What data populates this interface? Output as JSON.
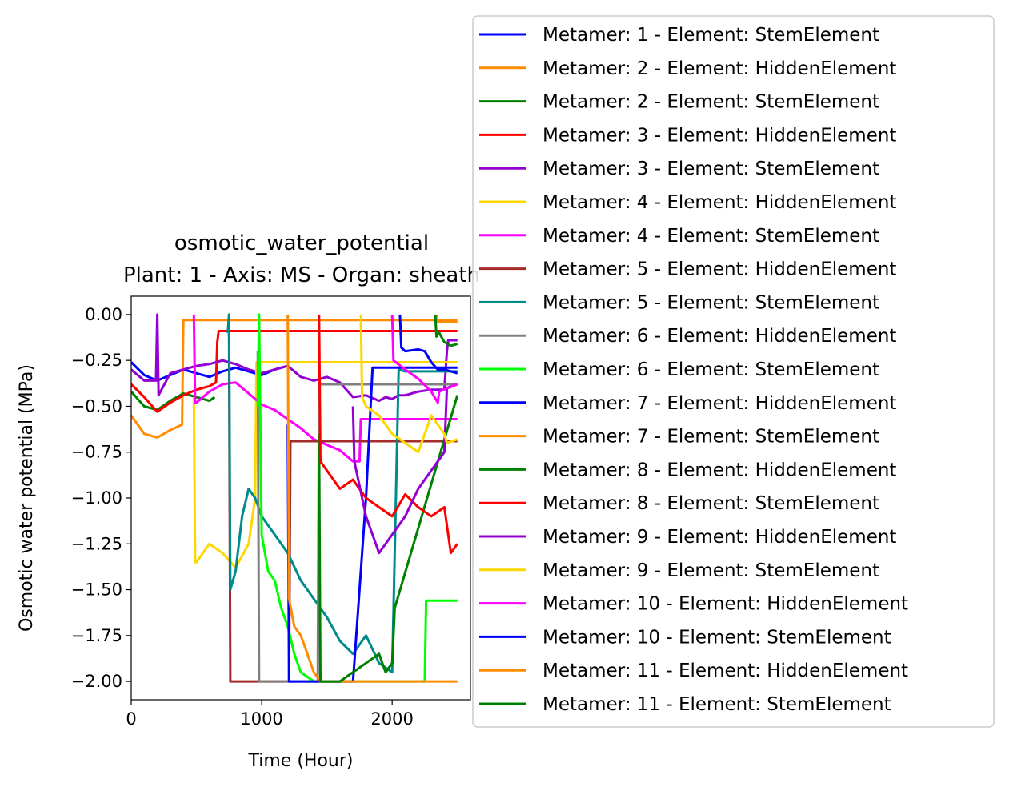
{
  "chart_data": {
    "type": "line",
    "title": "osmotic_water_potential",
    "subtitle": "Plant: 1 - Axis: MS - Organ: sheath",
    "xlabel": "Time (Hour)",
    "ylabel": "Osmotic water potential (MPa)",
    "xlim": [
      0,
      2600
    ],
    "ylim": [
      -2.1,
      0.1
    ],
    "xticks": [
      0,
      1000,
      2000
    ],
    "xtick_labels": [
      "0",
      "1000",
      "2000"
    ],
    "yticks": [
      0.0,
      -0.25,
      -0.5,
      -0.75,
      -1.0,
      -1.25,
      -1.5,
      -1.75,
      -2.0
    ],
    "ytick_labels": [
      "0.00",
      "−0.25",
      "−0.50",
      "−0.75",
      "−1.00",
      "−1.25",
      "−1.50",
      "−1.75",
      "−2.00"
    ],
    "grid": false,
    "legend_position": "upper-right, outside the axes",
    "series": [
      {
        "name": "Metamer: 1 - Element: StemElement",
        "color": "#0000ff",
        "x": [
          0,
          100,
          200,
          300,
          400,
          500,
          600,
          700,
          800,
          900,
          1000,
          1100,
          1200,
          1210
        ],
        "y": [
          -0.26,
          -0.33,
          -0.36,
          -0.33,
          -0.3,
          -0.32,
          -0.34,
          -0.31,
          -0.29,
          -0.31,
          -0.33,
          -0.3,
          -0.28,
          -0.29
        ]
      },
      {
        "name": "Metamer: 2 - Element: HiddenElement",
        "color": "#ff8c00",
        "x": [
          0,
          100,
          200,
          300,
          390,
          400,
          2500
        ],
        "y": [
          -0.55,
          -0.65,
          -0.67,
          -0.63,
          -0.6,
          -0.03,
          -0.03
        ]
      },
      {
        "name": "Metamer: 2 - Element: StemElement",
        "color": "#008000",
        "x": [
          0,
          100,
          200,
          300,
          400,
          500,
          600,
          640
        ],
        "y": [
          -0.42,
          -0.5,
          -0.52,
          -0.47,
          -0.43,
          -0.45,
          -0.47,
          -0.45
        ]
      },
      {
        "name": "Metamer: 3 - Element: HiddenElement",
        "color": "#ff0000",
        "x": [
          0,
          100,
          200,
          300,
          400,
          500,
          600,
          650,
          660,
          670,
          2500
        ],
        "y": [
          -0.38,
          -0.45,
          -0.53,
          -0.48,
          -0.44,
          -0.41,
          -0.39,
          -0.37,
          -0.15,
          -0.09,
          -0.09
        ]
      },
      {
        "name": "Metamer: 3 - Element: StemElement",
        "color": "#9400d3",
        "x": [
          0,
          100,
          190,
          200,
          210,
          300,
          400,
          500,
          600,
          700,
          800,
          900,
          1000,
          1100,
          1200,
          1300,
          1400,
          1500,
          1600,
          1700,
          1800,
          1900,
          1950,
          2000,
          2050,
          2100,
          2200,
          2300,
          2350,
          2400,
          2420,
          2430,
          2500
        ],
        "y": [
          -0.3,
          -0.36,
          -0.36,
          0.0,
          -0.44,
          -0.32,
          -0.3,
          -0.28,
          -0.27,
          -0.25,
          -0.27,
          -0.3,
          -0.32,
          -0.3,
          -0.28,
          -0.34,
          -0.36,
          -0.34,
          -0.37,
          -0.45,
          -0.44,
          -0.47,
          -0.45,
          -0.46,
          -0.44,
          -0.44,
          -0.42,
          -0.41,
          -0.41,
          -0.41,
          -0.2,
          -0.14,
          -0.14
        ]
      },
      {
        "name": "Metamer: 4 - Element: HiddenElement",
        "color": "#ffd700",
        "x": [
          480,
          490,
          500,
          600,
          700,
          800,
          900,
          950,
          960,
          2500
        ],
        "y": [
          -0.45,
          -1.35,
          -1.35,
          -1.25,
          -1.3,
          -1.38,
          -1.25,
          -1.0,
          -0.26,
          -0.26
        ]
      },
      {
        "name": "Metamer: 4 - Element: StemElement",
        "color": "#ff00ff",
        "x": [
          480,
          490,
          500,
          600,
          700,
          800,
          900,
          1000,
          1100,
          1200,
          1300,
          1400,
          1500,
          1600,
          1700,
          1750,
          1760,
          2500
        ],
        "y": [
          0.0,
          -0.48,
          -0.48,
          -0.42,
          -0.38,
          -0.37,
          -0.43,
          -0.49,
          -0.52,
          -0.57,
          -0.62,
          -0.68,
          -0.71,
          -0.74,
          -0.8,
          -0.8,
          -0.57,
          -0.57
        ]
      },
      {
        "name": "Metamer: 5 - Element: HiddenElement",
        "color": "#a52a2a",
        "x": [
          750,
          760,
          1210,
          1220,
          2500
        ],
        "y": [
          -0.07,
          -2.0,
          -2.0,
          -0.69,
          -0.69
        ]
      },
      {
        "name": "Metamer: 5 - Element: StemElement",
        "color": "#008b8b",
        "x": [
          740,
          750,
          760,
          800,
          850,
          900,
          950,
          1000,
          1100,
          1200,
          1300,
          1400,
          1500,
          1600,
          1700,
          1800,
          1900,
          2000,
          2050,
          2100,
          2200,
          2500
        ],
        "y": [
          -0.1,
          0.0,
          -1.5,
          -1.4,
          -1.1,
          -0.95,
          -1.0,
          -1.1,
          -1.2,
          -1.3,
          -1.45,
          -1.55,
          -1.65,
          -1.78,
          -1.85,
          -1.75,
          -1.9,
          -1.95,
          -0.3,
          -0.31,
          -0.31,
          -0.31
        ]
      },
      {
        "name": "Metamer: 6 - Element: HiddenElement",
        "color": "#808080",
        "x": [
          970,
          980,
          1430,
          1440,
          2500
        ],
        "y": [
          -0.2,
          -2.0,
          -2.0,
          -0.38,
          -0.38
        ]
      },
      {
        "name": "Metamer: 6 - Element: StemElement",
        "color": "#00ff00",
        "x": [
          970,
          980,
          1000,
          1050,
          1100,
          1150,
          1200,
          1250,
          1300,
          1400,
          1500,
          1700,
          2000,
          2250,
          2260,
          2500
        ],
        "y": [
          -0.5,
          0.0,
          -1.2,
          -1.4,
          -1.45,
          -1.6,
          -1.7,
          -1.85,
          -1.95,
          -2.0,
          -2.0,
          -2.0,
          -2.0,
          -2.0,
          -1.56,
          -1.56
        ]
      },
      {
        "name": "Metamer: 7 - Element: HiddenElement",
        "color": "#0000ff",
        "x": [
          1200,
          1210,
          1700,
          1710,
          1800,
          1850,
          2500
        ],
        "y": [
          -0.6,
          -2.0,
          -2.0,
          -1.9,
          -1.0,
          -0.29,
          -0.29
        ]
      },
      {
        "name": "Metamer: 7 - Element: StemElement",
        "color": "#ff8c00",
        "x": [
          1200,
          1210,
          1250,
          1300,
          1350,
          1400,
          1450,
          1500,
          2500
        ],
        "y": [
          0.0,
          -1.55,
          -1.7,
          -1.75,
          -1.85,
          -1.95,
          -2.0,
          -2.0,
          -2.0
        ]
      },
      {
        "name": "Metamer: 8 - Element: HiddenElement",
        "color": "#008000",
        "x": [
          1440,
          1450,
          1500,
          1600,
          1700,
          1800,
          1900,
          1950,
          2000,
          2020,
          2500
        ],
        "y": [
          -0.65,
          -2.0,
          -2.0,
          -2.0,
          -1.95,
          -1.9,
          -1.85,
          -1.95,
          -1.9,
          -1.6,
          -0.44
        ]
      },
      {
        "name": "Metamer: 8 - Element: StemElement",
        "color": "#ff0000",
        "x": [
          1440,
          1450,
          1500,
          1600,
          1700,
          1800,
          1900,
          2000,
          2100,
          2200,
          2300,
          2400,
          2450,
          2500
        ],
        "y": [
          0.0,
          -0.8,
          -0.85,
          -0.95,
          -0.9,
          -1.0,
          -1.05,
          -1.1,
          -0.98,
          -1.05,
          -1.1,
          -1.05,
          -1.3,
          -1.25
        ]
      },
      {
        "name": "Metamer: 9 - Element: HiddenElement",
        "color": "#9400d3",
        "x": [
          1700,
          1710,
          1800,
          1900,
          2000,
          2100,
          2200,
          2300,
          2400,
          2420,
          2500
        ],
        "y": [
          -0.5,
          -0.8,
          -1.1,
          -1.3,
          -1.2,
          -1.1,
          -0.95,
          -0.85,
          -0.75,
          -0.4,
          -0.38
        ]
      },
      {
        "name": "Metamer: 9 - Element: StemElement",
        "color": "#ffd700",
        "x": [
          1760,
          1770,
          1800,
          1900,
          1950,
          2000,
          2100,
          2200,
          2300,
          2400,
          2420,
          2500
        ],
        "y": [
          0.0,
          -0.45,
          -0.5,
          -0.55,
          -0.6,
          -0.65,
          -0.7,
          -0.75,
          -0.55,
          -0.65,
          -0.7,
          -0.68
        ]
      },
      {
        "name": "Metamer: 10 - Element: HiddenElement",
        "color": "#ff00ff",
        "x": [
          2000,
          2010,
          2100,
          2200,
          2300,
          2350,
          2360,
          2500
        ],
        "y": [
          0.0,
          -0.25,
          -0.3,
          -0.35,
          -0.42,
          -0.48,
          -0.42,
          -0.38
        ]
      },
      {
        "name": "Metamer: 10 - Element: StemElement",
        "color": "#0000ff",
        "x": [
          2060,
          2070,
          2100,
          2200,
          2250,
          2300,
          2350,
          2400,
          2500
        ],
        "y": [
          0.0,
          -0.18,
          -0.2,
          -0.19,
          -0.2,
          -0.26,
          -0.3,
          -0.3,
          -0.32
        ]
      },
      {
        "name": "Metamer: 11 - Element: HiddenElement",
        "color": "#ff8c00",
        "x": [
          2340,
          2350,
          2500
        ],
        "y": [
          0.0,
          -0.04,
          -0.04
        ]
      },
      {
        "name": "Metamer: 11 - Element: StemElement",
        "color": "#008000",
        "x": [
          2330,
          2340,
          2360,
          2400,
          2450,
          2500
        ],
        "y": [
          0.0,
          -0.12,
          -0.1,
          -0.15,
          -0.17,
          -0.16
        ]
      }
    ]
  }
}
